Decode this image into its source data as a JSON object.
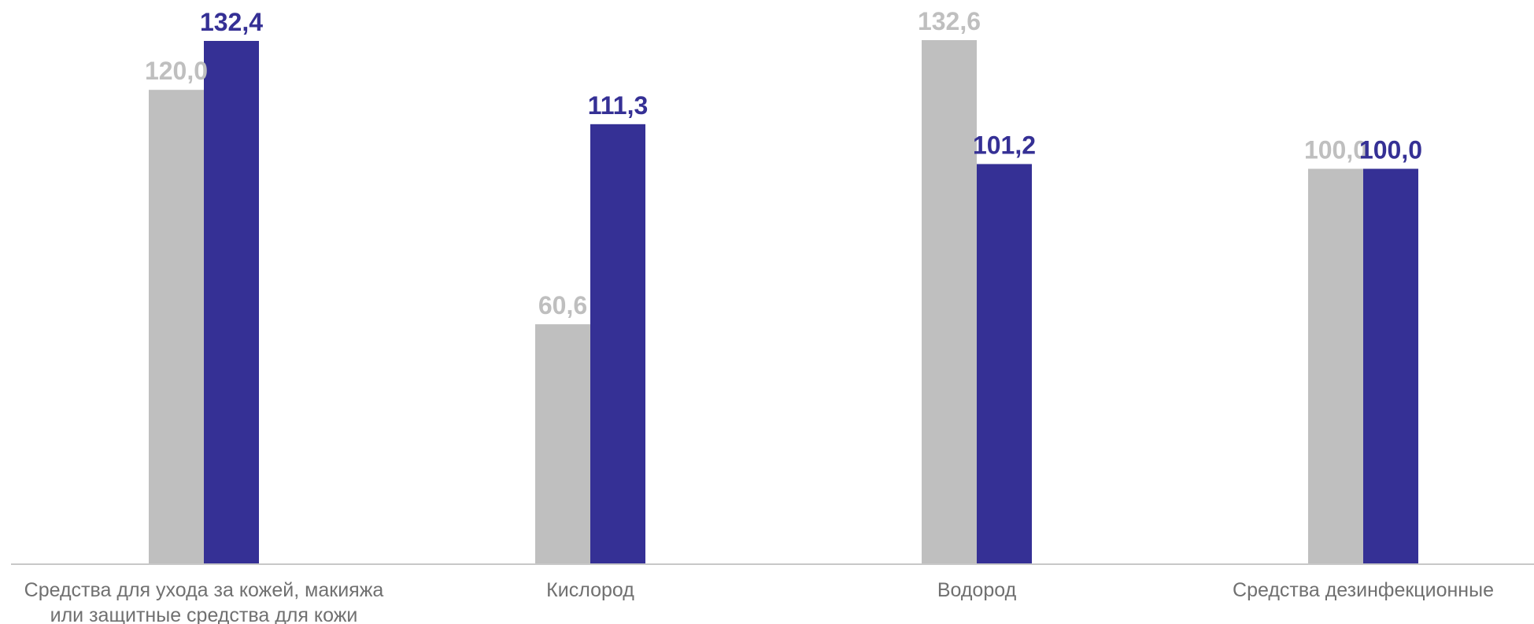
{
  "chart_data": {
    "type": "bar",
    "title": "",
    "xlabel": "",
    "ylabel": "",
    "ylim": [
      0,
      134
    ],
    "grid": false,
    "legend": "none",
    "categories": [
      [
        "Средства для ухода за кожей, макияжа",
        "или защитные средства для кожи"
      ],
      [
        "Кислород"
      ],
      [
        "Водород"
      ],
      [
        "Средства дезинфекционные"
      ]
    ],
    "series": [
      {
        "color": "#bfbfbf",
        "values": [
          120.0,
          60.6,
          132.6,
          100.0
        ],
        "labels": [
          "120,0",
          "60,6",
          "132,6",
          "100,0"
        ]
      },
      {
        "color": "#353095",
        "values": [
          132.4,
          111.3,
          101.2,
          100.0
        ],
        "labels": [
          "132,4",
          "111,3",
          "101,2",
          "100,0"
        ]
      }
    ],
    "axis_color": "#c8c8c8",
    "category_label_color": "#707070"
  }
}
